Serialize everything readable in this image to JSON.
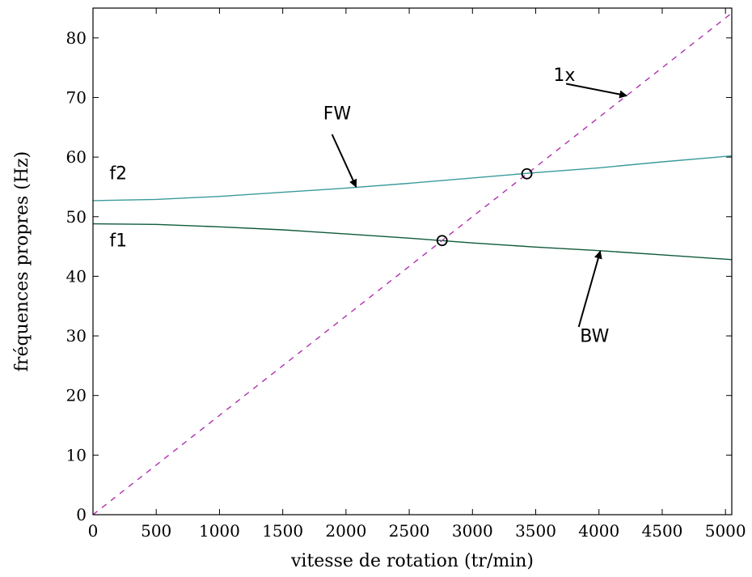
{
  "chart_data": {
    "type": "line",
    "xlabel": "vitesse de rotation (tr/min)",
    "ylabel": "fréquences propres (Hz)",
    "xlim": [
      0,
      5050
    ],
    "ylim": [
      0,
      85
    ],
    "x_ticks": [
      0,
      500,
      1000,
      1500,
      2000,
      2500,
      3000,
      3500,
      4000,
      4500,
      5000
    ],
    "y_ticks": [
      0,
      10,
      20,
      30,
      40,
      50,
      60,
      70,
      80
    ],
    "grid": false,
    "series": [
      {
        "name": "f2",
        "color": "#3a9a9a",
        "style": "solid",
        "x": [
          0,
          500,
          1000,
          1500,
          2000,
          2500,
          3000,
          3500,
          4000,
          4500,
          5050
        ],
        "y": [
          52.7,
          52.9,
          53.4,
          54.1,
          54.8,
          55.6,
          56.5,
          57.4,
          58.2,
          59.2,
          60.2
        ]
      },
      {
        "name": "f1",
        "color": "#0f5a3a",
        "style": "solid",
        "x": [
          0,
          500,
          1000,
          1500,
          2000,
          2500,
          3000,
          3500,
          4000,
          4500,
          5050
        ],
        "y": [
          48.8,
          48.7,
          48.3,
          47.8,
          47.1,
          46.4,
          45.6,
          44.9,
          44.3,
          43.6,
          42.8
        ]
      },
      {
        "name": "1x",
        "color": "#b030b0",
        "style": "dashed",
        "x": [
          0,
          5050
        ],
        "y": [
          0,
          84.17
        ]
      }
    ],
    "markers": [
      {
        "x": 3430,
        "y": 57.2
      },
      {
        "x": 2760,
        "y": 46.0
      }
    ],
    "annotations": [
      {
        "text": "1x",
        "text_x": 3640,
        "text_y": 72.8,
        "arrow_from": [
          3740,
          72.3
        ],
        "arrow_to": [
          4220,
          70.3
        ]
      },
      {
        "text": "FW",
        "text_x": 1820,
        "text_y": 66.3,
        "arrow_from": [
          1890,
          63.8
        ],
        "arrow_to": [
          2080,
          55.0
        ]
      },
      {
        "text": "BW",
        "text_x": 3850,
        "text_y": 29.0,
        "arrow_from": [
          3840,
          31.5
        ],
        "arrow_to": [
          4010,
          44.2
        ]
      },
      {
        "text": "f2",
        "text_x": 130,
        "text_y": 56.3
      },
      {
        "text": "f1",
        "text_x": 130,
        "text_y": 45.0
      }
    ]
  }
}
